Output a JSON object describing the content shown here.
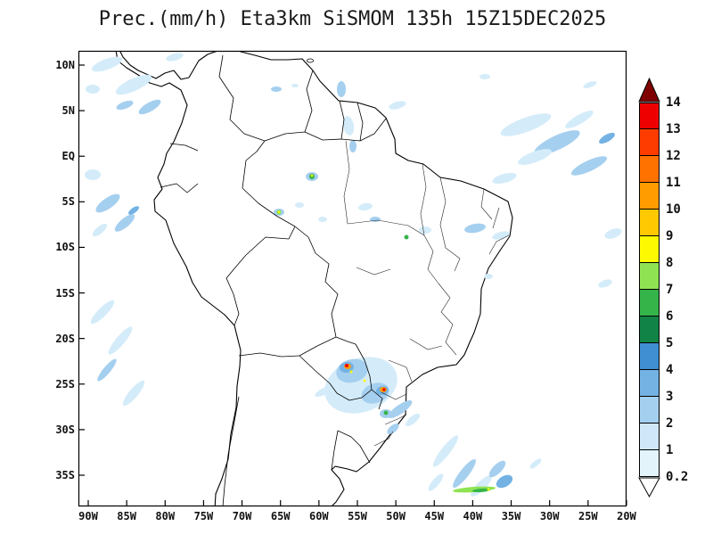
{
  "title": "Prec.(mm/h) Eta3km SiSMOM 135h 15Z15DEC2025",
  "map": {
    "y_axis_ticks": [
      "10N",
      "5N",
      "EQ",
      "5S",
      "10S",
      "15S",
      "20S",
      "25S",
      "30S",
      "35S"
    ],
    "x_axis_ticks": [
      "90W",
      "85W",
      "80W",
      "75W",
      "70W",
      "65W",
      "60W",
      "55W",
      "50W",
      "45W",
      "40W",
      "35W",
      "30W",
      "25W",
      "20W"
    ]
  },
  "colorbar": {
    "labels_top_to_bottom": [
      "14",
      "13",
      "12",
      "11",
      "10",
      "9",
      "8",
      "7",
      "6",
      "5",
      "4",
      "3",
      "2",
      "1",
      "0.2"
    ],
    "segment_colors_top_to_bottom": [
      "#ee0000",
      "#ff3c00",
      "#ff7200",
      "#ff9c00",
      "#ffc800",
      "#fdf900",
      "#8fe352",
      "#35b44a",
      "#128347",
      "#3f8fd2",
      "#74b2e4",
      "#a5cfef",
      "#cfe7f8",
      "#e3f5fb"
    ],
    "over_color": "#7f0000",
    "under_color": "#ffffff"
  },
  "chart_data": {
    "type": "heatmap",
    "title": "Prec.(mm/h) Eta3km SiSMOM 135h 15Z15DEC2025",
    "units": "mm/h",
    "levels": [
      0.2,
      1,
      2,
      3,
      4,
      5,
      6,
      7,
      8,
      9,
      10,
      11,
      12,
      13,
      14
    ],
    "x_tick_labels": [
      "90W",
      "85W",
      "80W",
      "75W",
      "70W",
      "65W",
      "60W",
      "55W",
      "50W",
      "45W",
      "40W",
      "35W",
      "30W",
      "25W",
      "20W"
    ],
    "y_tick_labels": [
      "10N",
      "5N",
      "EQ",
      "5S",
      "10S",
      "15S",
      "20S",
      "25S",
      "30S",
      "35S"
    ],
    "legend_position": "right",
    "grid": false
  }
}
